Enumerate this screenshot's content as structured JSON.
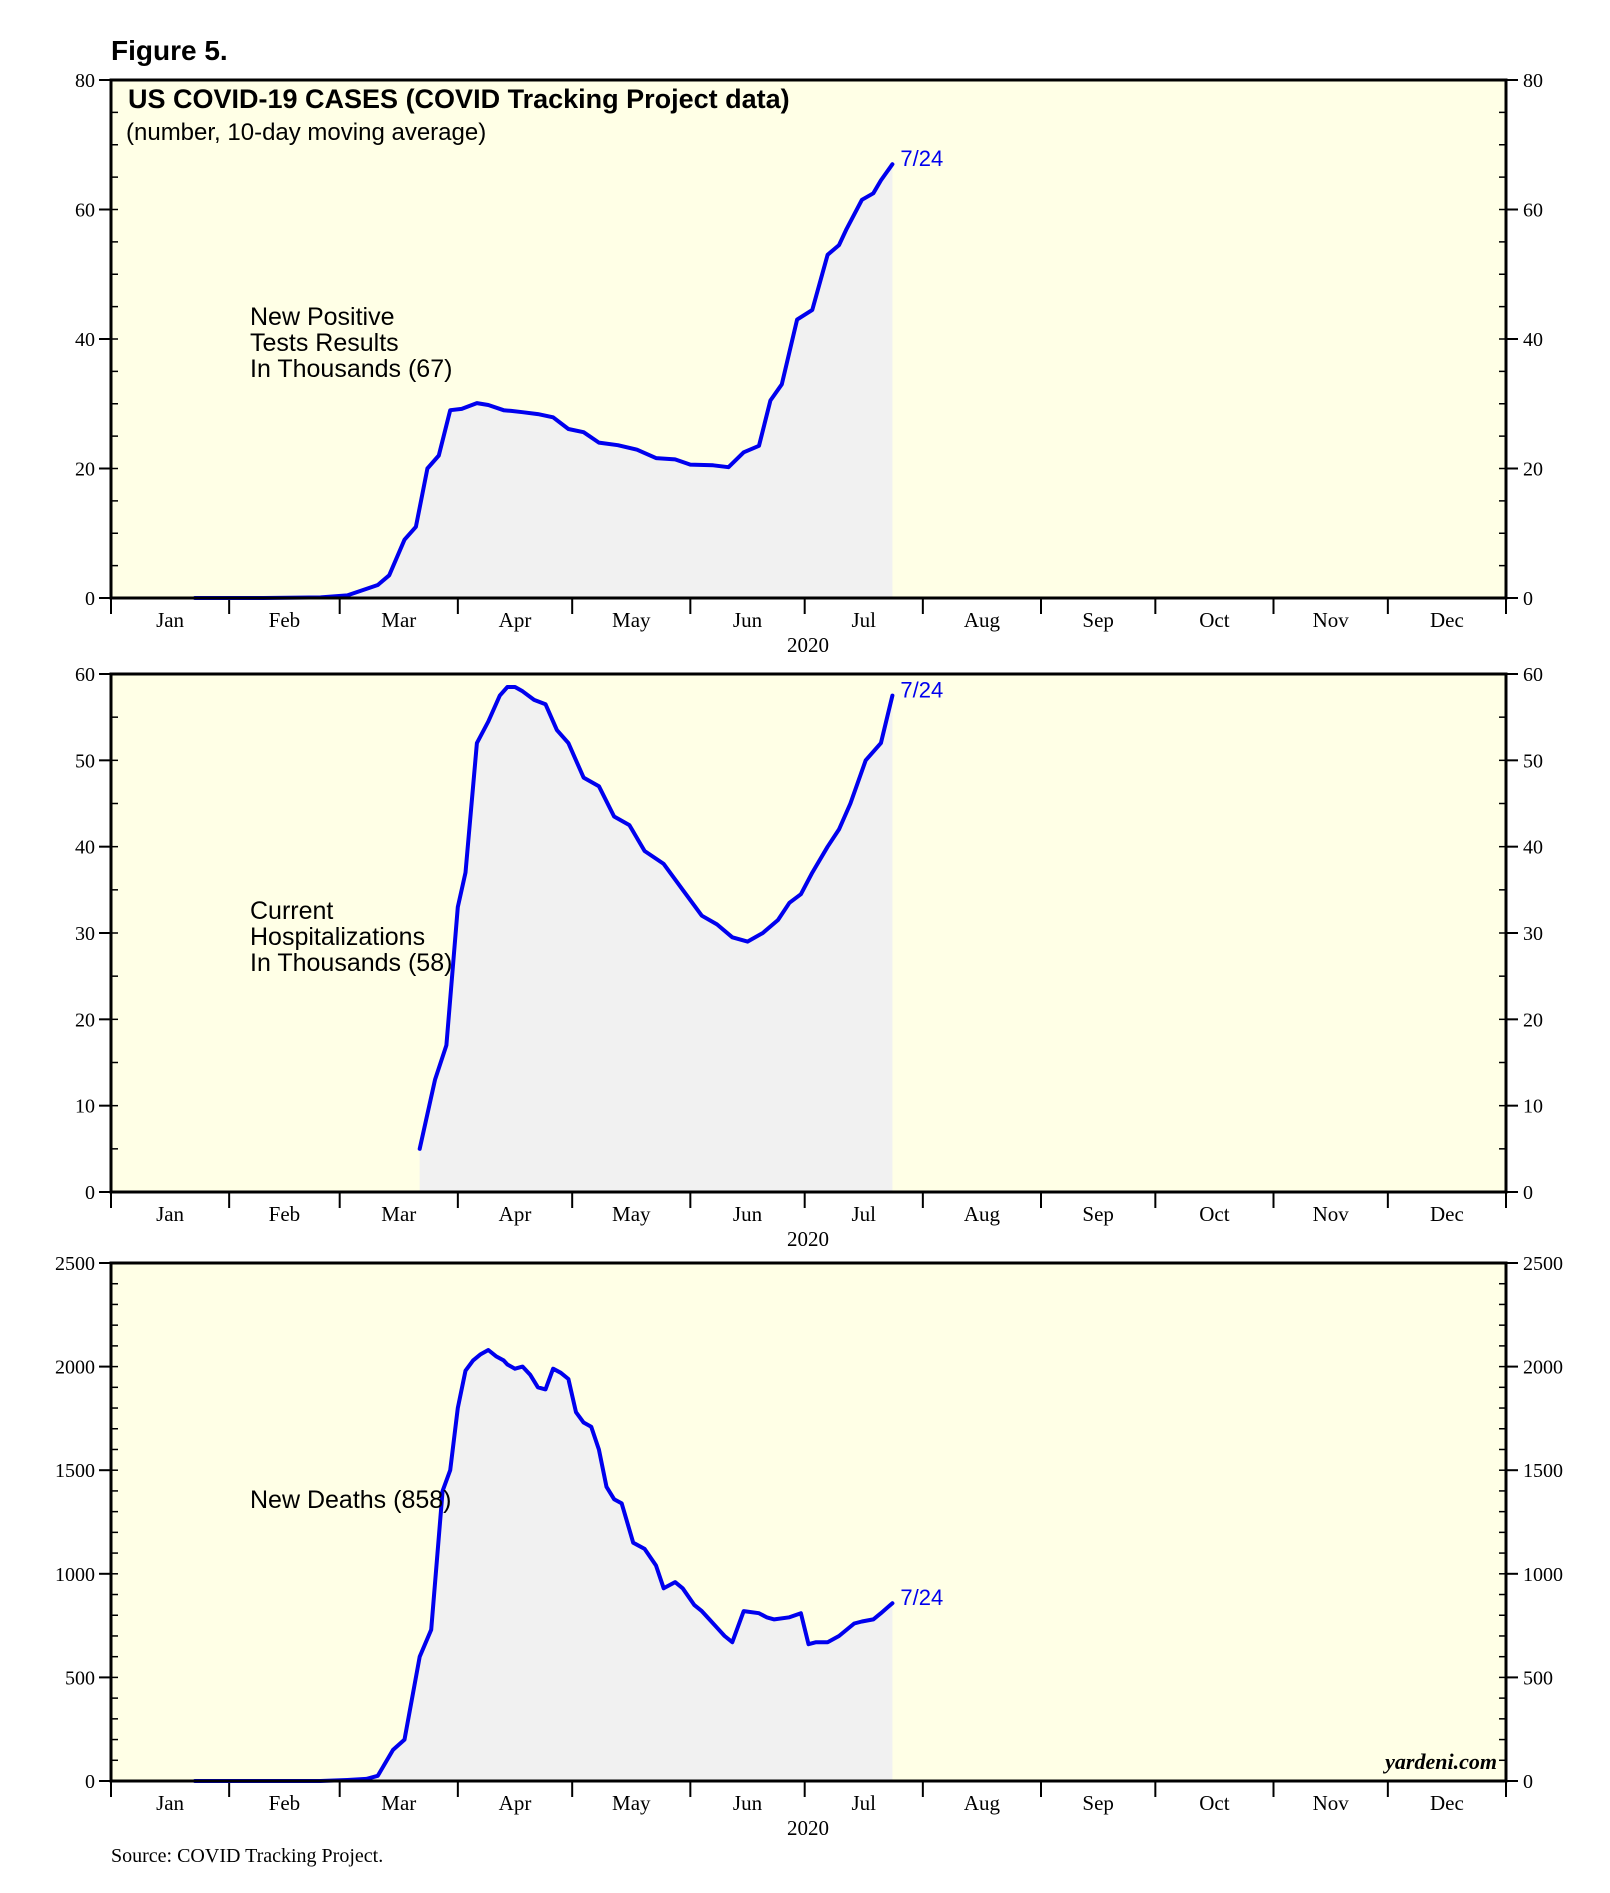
{
  "figure_label": "Figure 5.",
  "source": "Source: COVID Tracking Project.",
  "brand": "yardeni.com",
  "colors": {
    "plot_bg": "#ffffe6",
    "line": "#0000ee",
    "fill": "#f1f1f1"
  },
  "chart_data": [
    {
      "type": "area",
      "title": "US COVID-19 CASES (COVID Tracking Project data)",
      "subtitle": "(number, 10-day moving average)",
      "annotation": [
        "New Positive",
        "Tests Results",
        "In Thousands (67)"
      ],
      "end_label": "7/24",
      "xlabel": "2020",
      "x_months": [
        "Jan",
        "Feb",
        "Mar",
        "Apr",
        "May",
        "Jun",
        "Jul",
        "Aug",
        "Sep",
        "Oct",
        "Nov",
        "Dec"
      ],
      "ylim": [
        0,
        80
      ],
      "y_ticks": [
        0,
        20,
        40,
        60,
        80
      ],
      "y_minor_step": 5,
      "series": [
        {
          "name": "New Positive Tests Results In Thousands",
          "x": [
            22,
            40,
            55,
            62,
            70,
            73,
            77,
            80,
            83,
            86,
            89,
            92,
            96,
            99,
            103,
            105,
            108,
            112,
            116,
            120,
            124,
            128,
            133,
            138,
            143,
            148,
            152,
            158,
            162,
            166,
            170,
            173,
            176,
            180,
            184,
            188,
            191,
            193,
            197,
            200,
            202,
            205
          ],
          "values": [
            0,
            0,
            0.1,
            0.4,
            2,
            3.5,
            9,
            11,
            20,
            22,
            29,
            29.2,
            30.1,
            29.8,
            29,
            28.9,
            28.7,
            28.4,
            27.9,
            26.1,
            25.6,
            24,
            23.6,
            22.9,
            21.6,
            21.4,
            20.6,
            20.5,
            20.2,
            22.5,
            23.5,
            30.5,
            33,
            43,
            44.5,
            53,
            54.5,
            57,
            61.5,
            62.5,
            64.5,
            67
          ]
        }
      ]
    },
    {
      "type": "area",
      "title": "",
      "subtitle": "",
      "annotation": [
        "Current",
        "Hospitalizations",
        "In Thousands (58)"
      ],
      "end_label": "7/24",
      "xlabel": "2020",
      "x_months": [
        "Jan",
        "Feb",
        "Mar",
        "Apr",
        "May",
        "Jun",
        "Jul",
        "Aug",
        "Sep",
        "Oct",
        "Nov",
        "Dec"
      ],
      "ylim": [
        0,
        60
      ],
      "y_ticks": [
        0,
        10,
        20,
        30,
        40,
        50,
        60
      ],
      "y_minor_step": 5,
      "series": [
        {
          "name": "Current Hospitalizations In Thousands",
          "x": [
            81,
            85,
            88,
            91,
            93,
            96,
            99,
            102,
            104,
            106,
            108,
            111,
            114,
            117,
            120,
            124,
            128,
            132,
            136,
            140,
            145,
            150,
            155,
            159,
            163,
            167,
            171,
            175,
            178,
            181,
            184,
            188,
            191,
            194,
            198,
            202,
            205
          ],
          "values": [
            5,
            13,
            17,
            33,
            37,
            52,
            54.5,
            57.5,
            58.5,
            58.5,
            58,
            57,
            56.5,
            53.5,
            52,
            48,
            47,
            43.5,
            42.5,
            39.5,
            38,
            35,
            32,
            31,
            29.5,
            29,
            30,
            31.5,
            33.5,
            34.5,
            37,
            40,
            42,
            45,
            50,
            52,
            57.5
          ]
        }
      ]
    },
    {
      "type": "area",
      "title": "",
      "subtitle": "",
      "annotation": [
        "New Deaths (858)"
      ],
      "end_label": "7/24",
      "xlabel": "2020",
      "x_months": [
        "Jan",
        "Feb",
        "Mar",
        "Apr",
        "May",
        "Jun",
        "Jul",
        "Aug",
        "Sep",
        "Oct",
        "Nov",
        "Dec"
      ],
      "ylim": [
        0,
        2500
      ],
      "y_ticks": [
        0,
        500,
        1000,
        1500,
        2000,
        2500
      ],
      "y_minor_step": 100,
      "series": [
        {
          "name": "New Deaths",
          "x": [
            22,
            40,
            55,
            62,
            67,
            70,
            74,
            77,
            81,
            84,
            87,
            89,
            91,
            93,
            95,
            97,
            99,
            101,
            103,
            104,
            106,
            108,
            110,
            112,
            114,
            116,
            118,
            120,
            122,
            124,
            126,
            128,
            130,
            132,
            134,
            137,
            140,
            143,
            145,
            148,
            150,
            153,
            155,
            157,
            159,
            161,
            163,
            166,
            170,
            172,
            174,
            178,
            181,
            183,
            185,
            188,
            191,
            195,
            197,
            200,
            202,
            205
          ],
          "values": [
            0,
            0,
            0,
            5,
            10,
            25,
            150,
            200,
            600,
            730,
            1400,
            1500,
            1800,
            1980,
            2030,
            2060,
            2080,
            2050,
            2030,
            2010,
            1990,
            2000,
            1960,
            1900,
            1890,
            1990,
            1970,
            1940,
            1780,
            1730,
            1710,
            1600,
            1420,
            1360,
            1340,
            1150,
            1120,
            1040,
            930,
            960,
            930,
            850,
            820,
            780,
            740,
            700,
            670,
            820,
            810,
            790,
            780,
            790,
            810,
            660,
            670,
            670,
            700,
            760,
            770,
            780,
            810,
            858
          ]
        }
      ]
    }
  ]
}
